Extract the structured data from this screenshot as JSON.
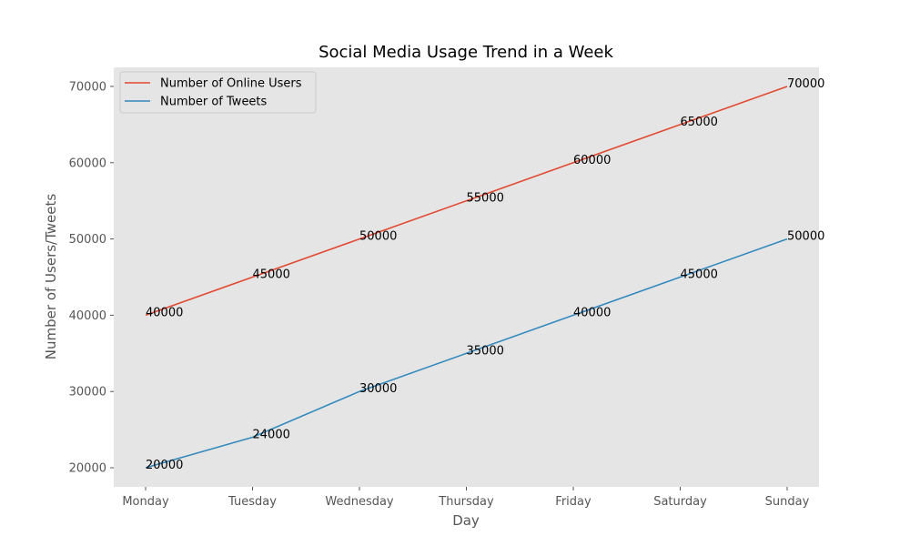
{
  "chart_data": {
    "type": "line",
    "title": "Social Media Usage Trend in a Week",
    "xlabel": "Day",
    "ylabel": "Number of Users/Tweets",
    "categories": [
      "Monday",
      "Tuesday",
      "Wednesday",
      "Thursday",
      "Friday",
      "Saturday",
      "Sunday"
    ],
    "series": [
      {
        "name": "Number of Online Users",
        "values": [
          40000,
          45000,
          50000,
          55000,
          60000,
          65000,
          70000
        ],
        "color": "#E24A33"
      },
      {
        "name": "Number of Tweets",
        "values": [
          20000,
          24000,
          30000,
          35000,
          40000,
          45000,
          50000
        ],
        "color": "#348ABD"
      }
    ],
    "yticks": [
      20000,
      30000,
      40000,
      50000,
      60000,
      70000
    ],
    "ylim": [
      17500,
      72500
    ],
    "grid": false,
    "legend_position": "top-left",
    "plot_background": "#E5E5E5"
  }
}
